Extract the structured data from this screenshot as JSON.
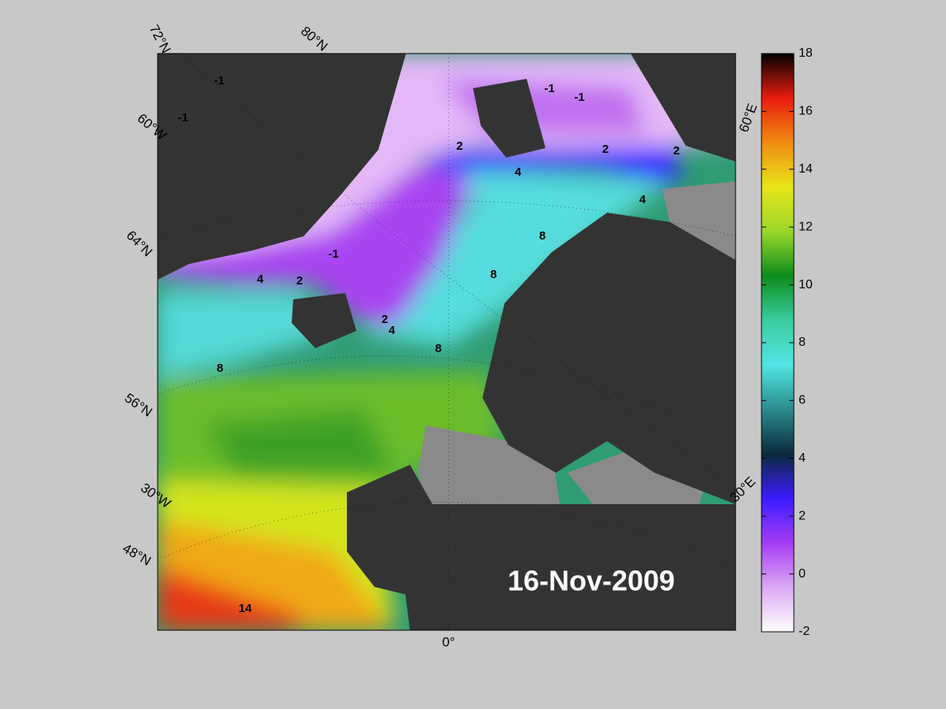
{
  "map": {
    "date": "16-Nov-2009",
    "graticule_labels": [
      "72°N",
      "80°N",
      "60°W",
      "64°N",
      "56°N",
      "30°W",
      "48°N",
      "0°",
      "30°E",
      "60°E"
    ],
    "contour_labels": [
      -1,
      -1,
      -1,
      -1,
      -1,
      2,
      2,
      2,
      2,
      2,
      4,
      4,
      4,
      4,
      8,
      8,
      8,
      8,
      14
    ]
  },
  "colorbar": {
    "lim": [
      -2,
      18
    ],
    "ticks": [
      -2,
      0,
      2,
      4,
      6,
      8,
      10,
      12,
      14,
      16,
      18
    ],
    "colors": [
      "#ffffff",
      "#dca8f4",
      "#a43cf4",
      "#3a1cff",
      "#0c2a3c",
      "#2a8c8c",
      "#52e4e4",
      "#3ccca0",
      "#0c8c1c",
      "#9ad82a",
      "#e8e418",
      "#f08c10",
      "#e81c10",
      "#000000"
    ]
  }
}
